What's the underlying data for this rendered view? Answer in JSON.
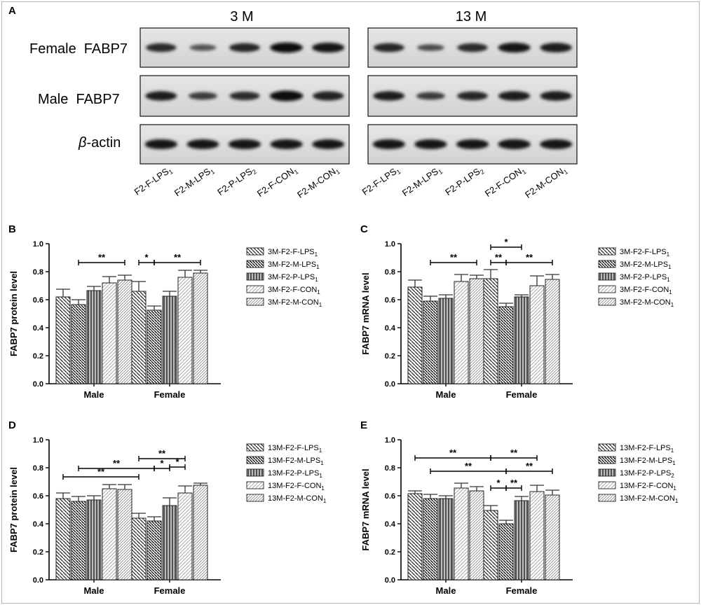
{
  "blot": {
    "panel_label": "A",
    "group_left": "3 M",
    "group_right": "13 M",
    "row1_label": "Female  FABP7",
    "row2_label": "Male  FABP7",
    "row3_greek": "β",
    "row3_rest": "-actin",
    "lanes_left": [
      {
        "base": "F2-F-LPS",
        "sub": "1"
      },
      {
        "base": "F2-M-LPS",
        "sub": "1"
      },
      {
        "base": "F2-P-LPS",
        "sub": "2"
      },
      {
        "base": "F2-F-CON",
        "sub": "1"
      },
      {
        "base": "F2-M-CON",
        "sub": "1"
      }
    ],
    "lanes_right": [
      {
        "base": "F2-F-LPS",
        "sub": "1"
      },
      {
        "base": "F2-M-LPS",
        "sub": "1"
      },
      {
        "base": "F2-P-LPS",
        "sub": "2"
      },
      {
        "base": "F2-F-CON",
        "sub": "1"
      },
      {
        "base": "F2-M-CON",
        "sub": "1"
      }
    ],
    "intensity": {
      "left": [
        [
          0.72,
          0.35,
          0.75,
          0.95,
          0.9
        ],
        [
          0.82,
          0.55,
          0.7,
          1.0,
          0.8
        ],
        [
          0.9,
          0.88,
          0.9,
          0.9,
          0.88
        ]
      ],
      "right": [
        [
          0.75,
          0.4,
          0.72,
          0.9,
          0.85
        ],
        [
          0.82,
          0.55,
          0.75,
          0.85,
          0.85
        ],
        [
          0.9,
          0.9,
          0.9,
          0.92,
          0.9
        ]
      ]
    }
  },
  "chart_data": [
    {
      "panel": "B",
      "type": "bar",
      "ylabel": "FABP7 protein level",
      "ylim": [
        0,
        1.0
      ],
      "yticks": [
        "0.0",
        "0.2",
        "0.4",
        "0.6",
        "0.8",
        "1.0"
      ],
      "categories": [
        "Male",
        "Female"
      ],
      "series": [
        {
          "name": "3M-F2-F-LPS",
          "sub": "1",
          "values": [
            0.62,
            0.66
          ],
          "errors": [
            0.055,
            0.07
          ]
        },
        {
          "name": "3M-F2-M-LPS",
          "sub": "1",
          "values": [
            0.565,
            0.525
          ],
          "errors": [
            0.035,
            0.03
          ]
        },
        {
          "name": "3M-F2-P-LPS",
          "sub": "1",
          "values": [
            0.665,
            0.625
          ],
          "errors": [
            0.03,
            0.035
          ]
        },
        {
          "name": "3M-F2-F-CON",
          "sub": "1",
          "values": [
            0.72,
            0.76
          ],
          "errors": [
            0.045,
            0.05
          ]
        },
        {
          "name": "3M-F2-M-CON",
          "sub": "1",
          "values": [
            0.74,
            0.79
          ],
          "errors": [
            0.035,
            0.02
          ]
        }
      ],
      "annotations": [
        {
          "label": "**",
          "from": [
            0,
            1
          ],
          "to": [
            0,
            4
          ],
          "y": 0.865
        },
        {
          "label": "*",
          "from": [
            1,
            0
          ],
          "to": [
            1,
            1
          ],
          "y": 0.865
        },
        {
          "label": "**",
          "from": [
            1,
            1
          ],
          "to": [
            1,
            4
          ],
          "y": 0.865
        }
      ]
    },
    {
      "panel": "C",
      "type": "bar",
      "ylabel": "FABP7 mRNA level",
      "ylim": [
        0,
        1.0
      ],
      "yticks": [
        "0.0",
        "0.2",
        "0.4",
        "0.6",
        "0.8",
        "1.0"
      ],
      "categories": [
        "Male",
        "Female"
      ],
      "series": [
        {
          "name": "3M-F2-F-LPS",
          "sub": "1",
          "values": [
            0.69,
            0.75
          ],
          "errors": [
            0.05,
            0.065
          ]
        },
        {
          "name": "3M-F2-M-LPS",
          "sub": "1",
          "values": [
            0.59,
            0.55
          ],
          "errors": [
            0.035,
            0.025
          ]
        },
        {
          "name": "3M-F2-P-LPS",
          "sub": "1",
          "values": [
            0.61,
            0.62
          ],
          "errors": [
            0.025,
            0.015
          ]
        },
        {
          "name": "3M-F2-F-CON",
          "sub": "1",
          "values": [
            0.73,
            0.7
          ],
          "errors": [
            0.05,
            0.07
          ]
        },
        {
          "name": "3M-F2-M-CON",
          "sub": "1",
          "values": [
            0.75,
            0.745
          ],
          "errors": [
            0.025,
            0.035
          ]
        }
      ],
      "annotations": [
        {
          "label": "**",
          "from": [
            0,
            1
          ],
          "to": [
            0,
            4
          ],
          "y": 0.865
        },
        {
          "label": "*",
          "from": [
            1,
            0
          ],
          "to": [
            1,
            2
          ],
          "y": 0.975
        },
        {
          "label": "**",
          "from": [
            1,
            0
          ],
          "to": [
            1,
            1
          ],
          "y": 0.865
        },
        {
          "label": "**",
          "from": [
            1,
            1
          ],
          "to": [
            1,
            4
          ],
          "y": 0.865
        }
      ]
    },
    {
      "panel": "D",
      "type": "bar",
      "ylabel": "FABP7 protein level",
      "ylim": [
        0,
        1.0
      ],
      "yticks": [
        "0.0",
        "0.2",
        "0.4",
        "0.6",
        "0.8",
        "1.0"
      ],
      "categories": [
        "Male",
        "Female"
      ],
      "series": [
        {
          "name": "13M-F2-F-LPS",
          "sub": "1",
          "values": [
            0.58,
            0.44
          ],
          "errors": [
            0.04,
            0.035
          ]
        },
        {
          "name": "13M-F2-M-LPS",
          "sub": "1",
          "values": [
            0.56,
            0.42
          ],
          "errors": [
            0.035,
            0.03
          ]
        },
        {
          "name": "13M-F2-P-LPS",
          "sub": "1",
          "values": [
            0.57,
            0.53
          ],
          "errors": [
            0.03,
            0.055
          ]
        },
        {
          "name": "13M-F2-F-CON",
          "sub": "1",
          "values": [
            0.65,
            0.62
          ],
          "errors": [
            0.03,
            0.05
          ]
        },
        {
          "name": "13M-F2-M-CON",
          "sub": "1",
          "values": [
            0.645,
            0.675
          ],
          "errors": [
            0.035,
            0.015
          ]
        }
      ],
      "annotations": [
        {
          "label": "**",
          "from": [
            0,
            0
          ],
          "to": [
            1,
            0
          ],
          "y": 0.735
        },
        {
          "label": "**",
          "from": [
            0,
            1
          ],
          "to": [
            1,
            1
          ],
          "y": 0.795
        },
        {
          "label": "**",
          "from": [
            1,
            0
          ],
          "to": [
            1,
            3
          ],
          "y": 0.865
        },
        {
          "label": "*",
          "from": [
            1,
            1
          ],
          "to": [
            1,
            2
          ],
          "y": 0.795
        },
        {
          "label": "*",
          "from": [
            1,
            2
          ],
          "to": [
            1,
            3
          ],
          "y": 0.805
        }
      ]
    },
    {
      "panel": "E",
      "type": "bar",
      "ylabel": "FABP7 mRNA level",
      "ylim": [
        0,
        1.0
      ],
      "yticks": [
        "0.0",
        "0.2",
        "0.4",
        "0.6",
        "0.8",
        "1.0"
      ],
      "categories": [
        "Male",
        "Female"
      ],
      "series": [
        {
          "name": "13M-F2-F-LPS",
          "sub": "1",
          "values": [
            0.615,
            0.495
          ],
          "errors": [
            0.02,
            0.035
          ]
        },
        {
          "name": "13M-F2-M-LPS",
          "sub": "1",
          "values": [
            0.58,
            0.4
          ],
          "errors": [
            0.03,
            0.025
          ]
        },
        {
          "name": "13M-F2-P-LPS",
          "sub": "2",
          "values": [
            0.58,
            0.565
          ],
          "errors": [
            0.02,
            0.03
          ]
        },
        {
          "name": "13M-F2-F-CON",
          "sub": "1",
          "values": [
            0.655,
            0.63
          ],
          "errors": [
            0.035,
            0.045
          ]
        },
        {
          "name": "13M-F2-M-CON",
          "sub": "1",
          "values": [
            0.635,
            0.605
          ],
          "errors": [
            0.03,
            0.035
          ]
        }
      ],
      "annotations": [
        {
          "label": "**",
          "from": [
            0,
            0
          ],
          "to": [
            1,
            0
          ],
          "y": 0.87
        },
        {
          "label": "**",
          "from": [
            1,
            0
          ],
          "to": [
            1,
            3
          ],
          "y": 0.87
        },
        {
          "label": "**",
          "from": [
            0,
            1
          ],
          "to": [
            1,
            1
          ],
          "y": 0.775
        },
        {
          "label": "**",
          "from": [
            1,
            1
          ],
          "to": [
            1,
            4
          ],
          "y": 0.775
        },
        {
          "label": "*",
          "from": [
            1,
            0
          ],
          "to": [
            1,
            1
          ],
          "y": 0.655
        },
        {
          "label": "**",
          "from": [
            1,
            1
          ],
          "to": [
            1,
            2
          ],
          "y": 0.655
        }
      ]
    }
  ]
}
